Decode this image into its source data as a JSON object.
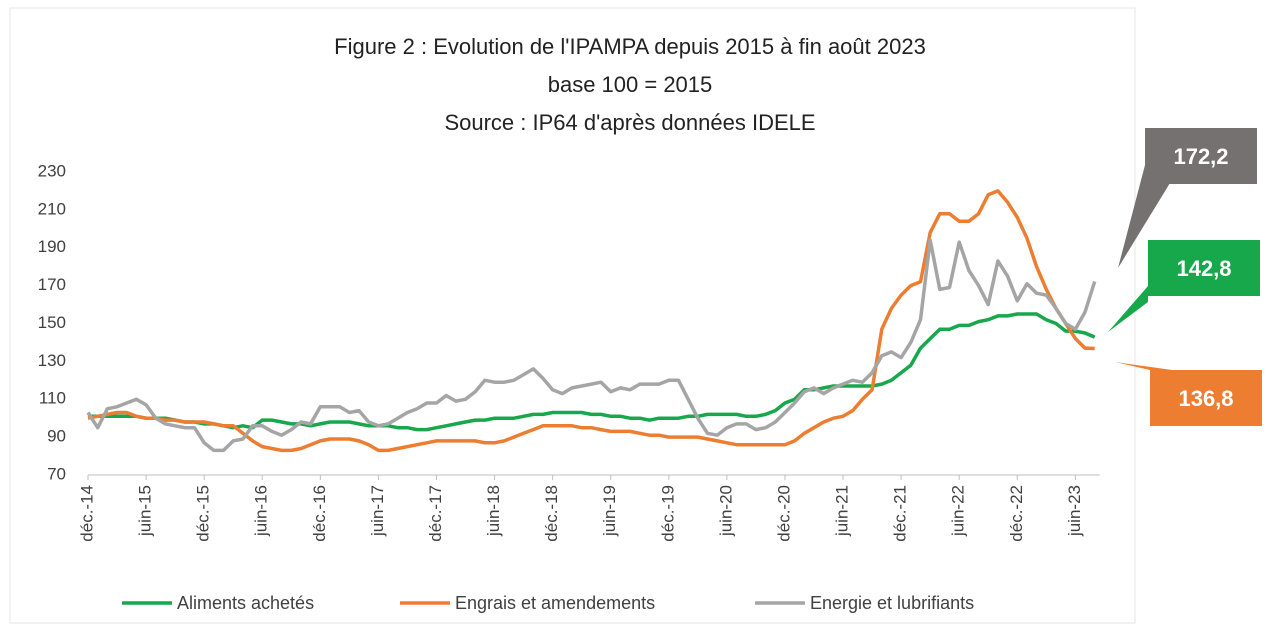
{
  "chart_data": {
    "type": "line",
    "title": "Figure 2 : Evolution de l'IPAMPA depuis 2015 à fin août 2023",
    "subtitle": "base 100 = 2015",
    "source": "Source : IP64 d'après données IDELE",
    "categories": [
      "déc.-14",
      null,
      null,
      null,
      null,
      null,
      "juin-15",
      null,
      null,
      null,
      null,
      null,
      "déc.-15",
      null,
      null,
      null,
      null,
      null,
      "juin-16",
      null,
      null,
      null,
      null,
      null,
      "déc.-16",
      null,
      null,
      null,
      null,
      null,
      "juin-17",
      null,
      null,
      null,
      null,
      null,
      "déc.-17",
      null,
      null,
      null,
      null,
      null,
      "juin-18",
      null,
      null,
      null,
      null,
      null,
      "déc.-18",
      null,
      null,
      null,
      null,
      null,
      "juin-19",
      null,
      null,
      null,
      null,
      null,
      "déc.-19",
      null,
      null,
      null,
      null,
      null,
      "juin-20",
      null,
      null,
      null,
      null,
      null,
      "déc.-20",
      null,
      null,
      null,
      null,
      null,
      "juin-21",
      null,
      null,
      null,
      null,
      null,
      "déc.-21",
      null,
      null,
      null,
      null,
      null,
      "juin-22",
      null,
      null,
      null,
      null,
      null,
      "déc.-22",
      null,
      null,
      null,
      null,
      null,
      "juin-23",
      null,
      null
    ],
    "ylim": [
      70,
      230
    ],
    "yticks": [
      70,
      90,
      110,
      130,
      150,
      170,
      190,
      210,
      230
    ],
    "grid": false,
    "series": [
      {
        "name": "Aliments achetés",
        "color": "#16a84b",
        "values": [
          101,
          101,
          101,
          101,
          101,
          101,
          100,
          100,
          100,
          99,
          98,
          98,
          97,
          97,
          96,
          95,
          96,
          95,
          99,
          99,
          98,
          97,
          97,
          96,
          97,
          98,
          98,
          98,
          97,
          96,
          96,
          96,
          95,
          95,
          94,
          94,
          95,
          96,
          97,
          98,
          99,
          99,
          100,
          100,
          100,
          101,
          102,
          102,
          103,
          103,
          103,
          103,
          102,
          102,
          101,
          101,
          100,
          100,
          99,
          100,
          100,
          100,
          101,
          101,
          102,
          102,
          102,
          102,
          101,
          101,
          102,
          104,
          108,
          110,
          115,
          115,
          116,
          117,
          117,
          117,
          117,
          117,
          118,
          120,
          124,
          128,
          137,
          142,
          147,
          147,
          149,
          149,
          151,
          152,
          154,
          154,
          155,
          155,
          155,
          152,
          150,
          146,
          146,
          145,
          142.8
        ],
        "value_labels": [
          null,
          null,
          null,
          null,
          null,
          null,
          null,
          null,
          null,
          null,
          null,
          null,
          null,
          null,
          null,
          null,
          null,
          null,
          null,
          null,
          null,
          null,
          null,
          null,
          null,
          null,
          null,
          null,
          null,
          null,
          null,
          null,
          null,
          null,
          null,
          null,
          null,
          null,
          null,
          null,
          null,
          null,
          null,
          null,
          null,
          null,
          null,
          null,
          null,
          null,
          null,
          null,
          null,
          null,
          null,
          null,
          null,
          null,
          null,
          null,
          null,
          null,
          null,
          null,
          null,
          null,
          null,
          null,
          null,
          null,
          null,
          null,
          null,
          null,
          null,
          null,
          null,
          null,
          null,
          null,
          null,
          null,
          null,
          null,
          null,
          null,
          null,
          null,
          null,
          null,
          null,
          null,
          null,
          null,
          null,
          null,
          null,
          null,
          null,
          null,
          null,
          null,
          null,
          null,
          "142,8"
        ]
      },
      {
        "name": "Engrais et amendements",
        "color": "#ed7d31",
        "values": [
          100,
          101,
          102,
          103,
          103,
          101,
          100,
          100,
          99,
          99,
          98,
          98,
          98,
          97,
          96,
          96,
          92,
          88,
          85,
          84,
          83,
          83,
          84,
          86,
          88,
          89,
          89,
          89,
          88,
          86,
          83,
          83,
          84,
          85,
          86,
          87,
          88,
          88,
          88,
          88,
          88,
          87,
          87,
          88,
          90,
          92,
          94,
          96,
          96,
          96,
          96,
          95,
          95,
          94,
          93,
          93,
          93,
          92,
          91,
          91,
          90,
          90,
          90,
          90,
          89,
          88,
          87,
          86,
          86,
          86,
          86,
          86,
          86,
          88,
          92,
          95,
          98,
          100,
          101,
          104,
          110,
          115,
          147,
          158,
          165,
          170,
          172,
          198,
          208,
          208,
          204,
          204,
          208,
          218,
          220,
          214,
          206,
          195,
          180,
          168,
          158,
          150,
          142,
          137,
          136.8
        ],
        "value_labels": [
          null,
          null,
          null,
          null,
          null,
          null,
          null,
          null,
          null,
          null,
          null,
          null,
          null,
          null,
          null,
          null,
          null,
          null,
          null,
          null,
          null,
          null,
          null,
          null,
          null,
          null,
          null,
          null,
          null,
          null,
          null,
          null,
          null,
          null,
          null,
          null,
          null,
          null,
          null,
          null,
          null,
          null,
          null,
          null,
          null,
          null,
          null,
          null,
          null,
          null,
          null,
          null,
          null,
          null,
          null,
          null,
          null,
          null,
          null,
          null,
          null,
          null,
          null,
          null,
          null,
          null,
          null,
          null,
          null,
          null,
          null,
          null,
          null,
          null,
          null,
          null,
          null,
          null,
          null,
          null,
          null,
          null,
          null,
          null,
          null,
          null,
          null,
          null,
          null,
          null,
          null,
          null,
          null,
          null,
          null,
          null,
          null,
          null,
          null,
          null,
          null,
          null,
          null,
          null,
          "136,8"
        ]
      },
      {
        "name": "Energie et lubrifiants",
        "color": "#a5a5a5",
        "values": [
          103,
          95,
          105,
          106,
          108,
          110,
          107,
          100,
          97,
          96,
          95,
          95,
          87,
          83,
          83,
          88,
          89,
          96,
          96,
          93,
          91,
          94,
          98,
          97,
          106,
          106,
          106,
          103,
          104,
          98,
          96,
          97,
          100,
          103,
          105,
          108,
          108,
          112,
          109,
          110,
          114,
          120,
          119,
          119,
          120,
          123,
          126,
          121,
          115,
          113,
          116,
          117,
          118,
          119,
          114,
          116,
          115,
          118,
          118,
          118,
          120,
          120,
          110,
          100,
          92,
          91,
          95,
          97,
          97,
          94,
          95,
          98,
          103,
          108,
          114,
          116,
          113,
          116,
          118,
          120,
          119,
          124,
          133,
          135,
          132,
          140,
          152,
          194,
          168,
          169,
          193,
          178,
          170,
          160,
          183,
          175,
          162,
          171,
          166,
          165,
          158,
          150,
          147,
          156,
          172.2
        ],
        "value_labels": [
          null,
          null,
          null,
          null,
          null,
          null,
          null,
          null,
          null,
          null,
          null,
          null,
          null,
          null,
          null,
          null,
          null,
          null,
          null,
          null,
          null,
          null,
          null,
          null,
          null,
          null,
          null,
          null,
          null,
          null,
          null,
          null,
          null,
          null,
          null,
          null,
          null,
          null,
          null,
          null,
          null,
          null,
          null,
          null,
          null,
          null,
          null,
          null,
          null,
          null,
          null,
          null,
          null,
          null,
          null,
          null,
          null,
          null,
          null,
          null,
          null,
          null,
          null,
          null,
          null,
          null,
          null,
          null,
          null,
          null,
          null,
          null,
          null,
          null,
          null,
          null,
          null,
          null,
          null,
          null,
          null,
          null,
          null,
          null,
          null,
          null,
          null,
          null,
          null,
          null,
          null,
          null,
          null,
          null,
          null,
          null,
          null,
          null,
          null,
          null,
          null,
          null,
          null,
          null,
          "172,2"
        ]
      }
    ]
  }
}
